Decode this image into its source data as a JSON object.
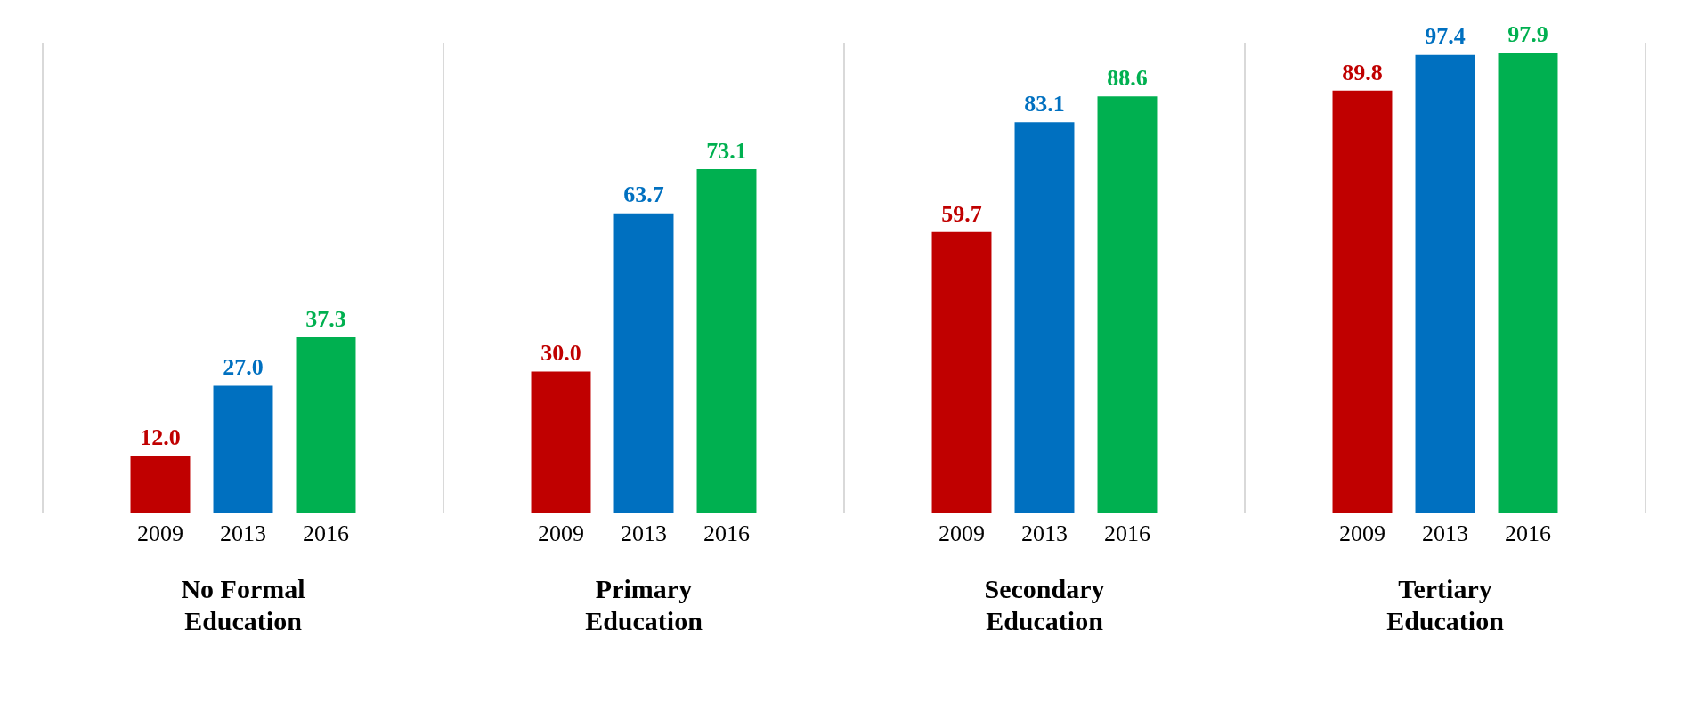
{
  "chart_data": {
    "type": "bar",
    "categories": [
      "No Formal Education",
      "Primary Education",
      "Secondary Education",
      "Tertiary Education"
    ],
    "series": [
      {
        "name": "2009",
        "color": "#c00000",
        "values": [
          12.0,
          30.0,
          59.7,
          89.8
        ],
        "value_labels": [
          "12.0",
          "30.0",
          "59.7",
          "89.8"
        ]
      },
      {
        "name": "2013",
        "color": "#0070c0",
        "values": [
          27.0,
          63.7,
          83.1,
          97.4
        ],
        "value_labels": [
          "27.0",
          "63.7",
          "83.1",
          "97.4"
        ]
      },
      {
        "name": "2016",
        "color": "#00b050",
        "values": [
          37.3,
          73.1,
          88.6,
          97.9
        ],
        "value_labels": [
          "37.3",
          "73.1",
          "88.6",
          "97.9"
        ]
      }
    ],
    "grid": "x",
    "legend": false
  }
}
